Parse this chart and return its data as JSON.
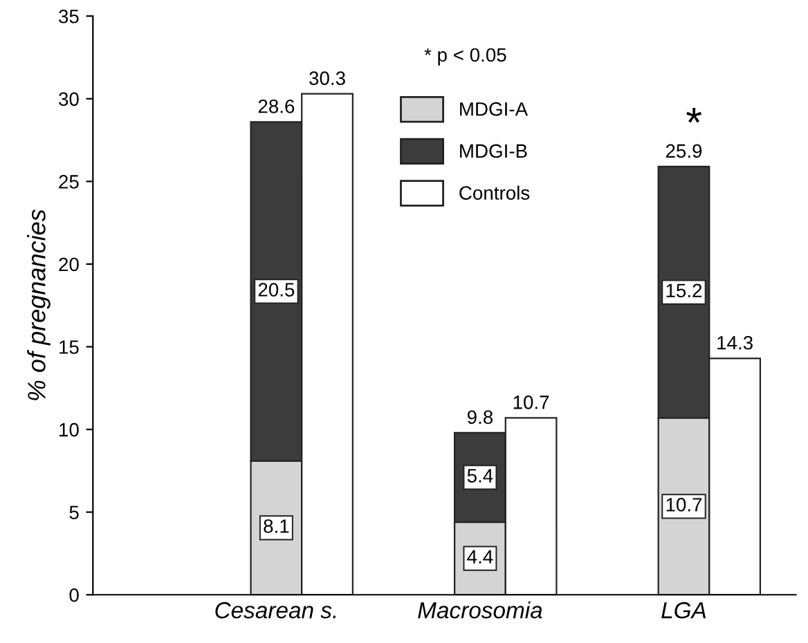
{
  "chart_data": {
    "type": "bar",
    "ylabel": "% of pregnancies",
    "categories": [
      "Cesarean s.",
      null,
      "Macrosomia",
      null,
      "LGA",
      null
    ],
    "series": [
      {
        "name": "MDGI-A",
        "color": "#d4d4d4",
        "values": [
          8.1,
          null,
          4.4,
          null,
          10.7,
          null
        ]
      },
      {
        "name": "MDGI-B",
        "color": "#3c3c3c",
        "values": [
          20.5,
          null,
          5.4,
          null,
          15.2,
          null
        ]
      },
      {
        "name": "Controls",
        "color": "#ffffff",
        "values": [
          null,
          30.3,
          null,
          10.7,
          null,
          14.3
        ]
      }
    ],
    "stacked": true,
    "data_labels": true,
    "totals": [
      "28.6",
      null,
      "9.8",
      null,
      "25.9",
      null
    ],
    "annotations": [
      "* p < 0.05",
      "*"
    ],
    "ylim": [
      0,
      35
    ],
    "yticks": [
      0,
      5,
      10,
      15,
      20,
      25,
      30,
      35
    ],
    "legend": "top",
    "grid": false
  }
}
